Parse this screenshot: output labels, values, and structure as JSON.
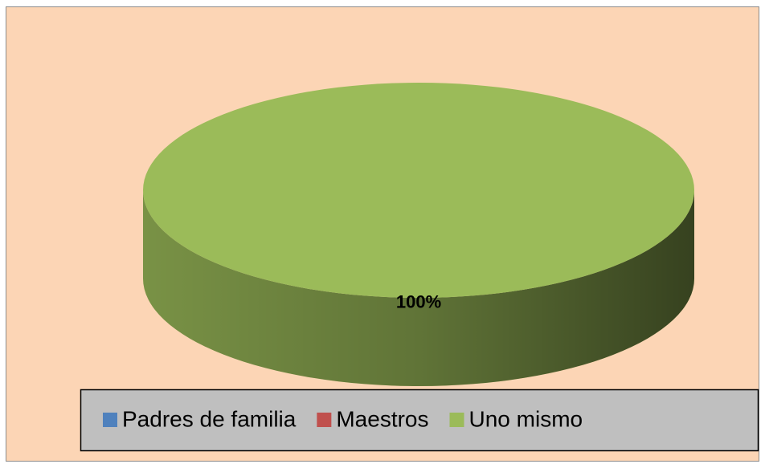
{
  "chart_data": {
    "type": "pie",
    "categories": [
      "Padres de familia",
      "Maestros",
      "Uno mismo"
    ],
    "values": [
      0,
      0,
      100
    ],
    "value_labels": [
      null,
      null,
      "100%"
    ],
    "colors": [
      "#4f81bd",
      "#c0504d",
      "#9bbb59"
    ],
    "legend": "bottom"
  }
}
